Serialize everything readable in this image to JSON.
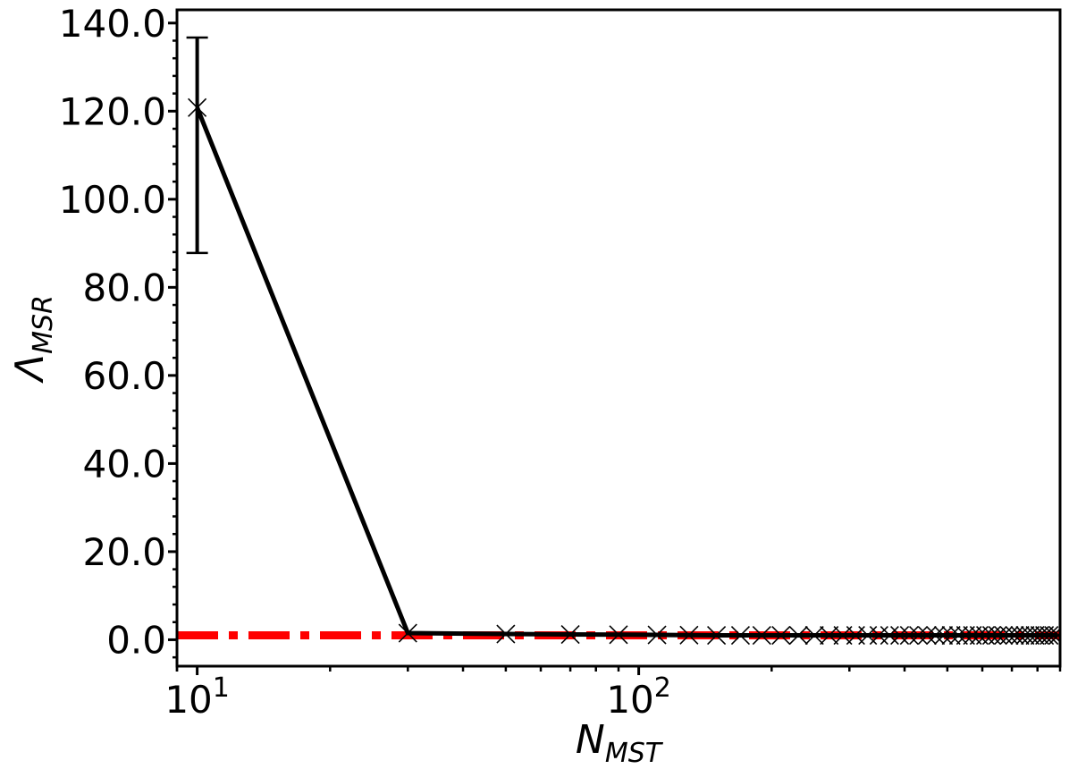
{
  "chart_data": {
    "type": "line",
    "xlabel": {
      "main": "N",
      "sub": "MST"
    },
    "ylabel": {
      "main": "Λ",
      "sub": "MSR"
    },
    "xscale": "log",
    "xlim": [
      9.0,
      900
    ],
    "ylim": [
      -6.0,
      143.0
    ],
    "xticks": [
      {
        "value": 10,
        "base": "10",
        "exp": "1"
      },
      {
        "value": 100,
        "base": "10",
        "exp": "2"
      }
    ],
    "yticks": [
      {
        "value": 0,
        "label": "0.0"
      },
      {
        "value": 20,
        "label": "20.0"
      },
      {
        "value": 40,
        "label": "40.0"
      },
      {
        "value": 60,
        "label": "60.0"
      },
      {
        "value": 80,
        "label": "80.0"
      },
      {
        "value": 100,
        "label": "100.0"
      },
      {
        "value": 120,
        "label": "120.0"
      },
      {
        "value": 140,
        "label": "140.0"
      }
    ],
    "grid": false,
    "legend": "none",
    "reference_line": {
      "y": 1.0,
      "color": "#ff0000",
      "style": "dash-dot"
    },
    "series": [
      {
        "color": "#000000",
        "marker": "x",
        "x": [
          10,
          30,
          50,
          70,
          90,
          110,
          130,
          150,
          170,
          190,
          210,
          230,
          250,
          270,
          290,
          310,
          330,
          350,
          370,
          390,
          410,
          430,
          450,
          470,
          490,
          510,
          530,
          550,
          570,
          590,
          610,
          630,
          650,
          670,
          690,
          710,
          730,
          750,
          770,
          790,
          810,
          830,
          850,
          870,
          890
        ],
        "y": [
          120.8,
          1.5,
          1.3,
          1.2,
          1.15,
          1.1,
          1.05,
          1.0,
          1.0,
          1.0,
          1.0,
          1.0,
          1.0,
          1.0,
          1.0,
          1.0,
          1.0,
          1.0,
          1.0,
          1.0,
          1.0,
          1.0,
          1.0,
          1.0,
          1.0,
          1.0,
          1.0,
          1.0,
          1.0,
          1.0,
          1.0,
          1.0,
          1.0,
          1.0,
          1.0,
          1.0,
          1.0,
          1.0,
          1.0,
          1.0,
          1.0,
          1.0,
          1.0,
          1.0,
          1.0
        ],
        "error_bars": [
          {
            "x": 10,
            "low": 87.8,
            "high": 136.7
          }
        ]
      }
    ]
  }
}
